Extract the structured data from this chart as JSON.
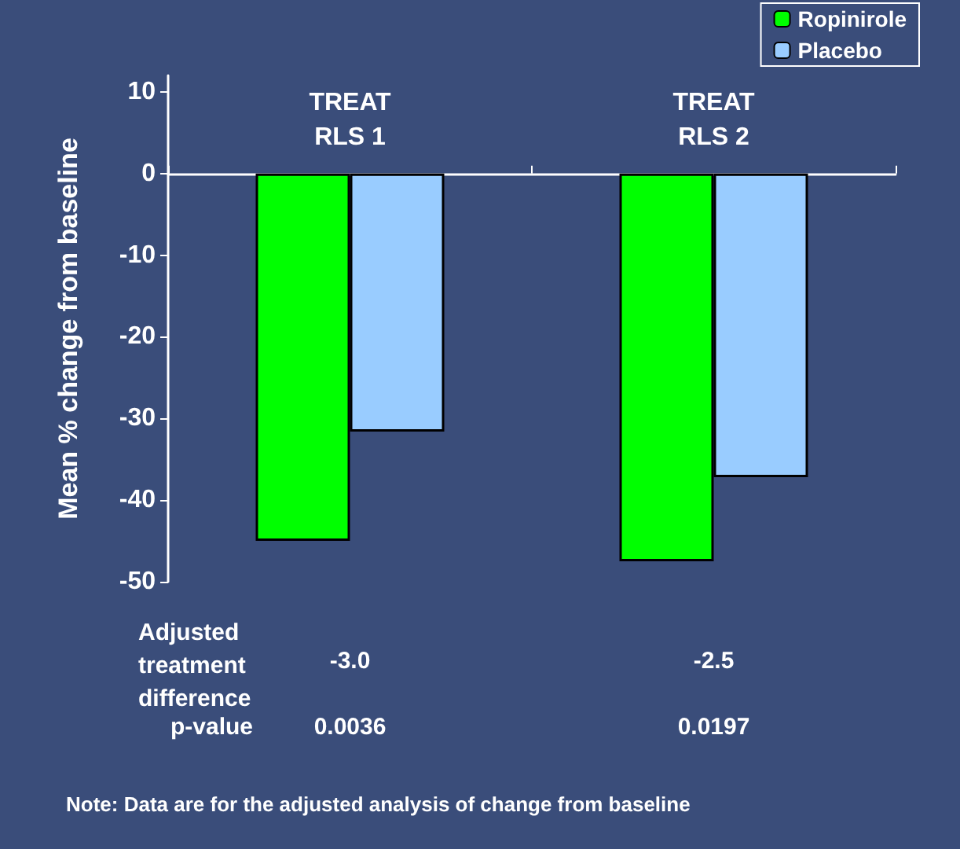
{
  "chart_data": {
    "type": "bar",
    "ylabel": "Mean % change from baseline",
    "categories": [
      "TREAT\nRLS 1",
      "TREAT\nRLS 2"
    ],
    "series": [
      {
        "name": "Ropinirole",
        "color": "#00ff00",
        "values": [
          -45.0,
          -47.5
        ]
      },
      {
        "name": "Placebo",
        "color": "#99ccff",
        "values": [
          -31.6,
          -37.2
        ]
      }
    ],
    "ylim": [
      -50,
      12
    ],
    "yticks": [
      -50,
      -40,
      -30,
      -20,
      -10,
      0,
      10
    ],
    "grid": false,
    "legend": "top right",
    "annotations": [
      "Adjusted\ntreatment\ndifference",
      "p-value",
      "-3.0",
      "0.0036",
      "-2.5",
      "0.0197",
      "Note: Data are for the adjusted analysis of change from baseline"
    ]
  }
}
